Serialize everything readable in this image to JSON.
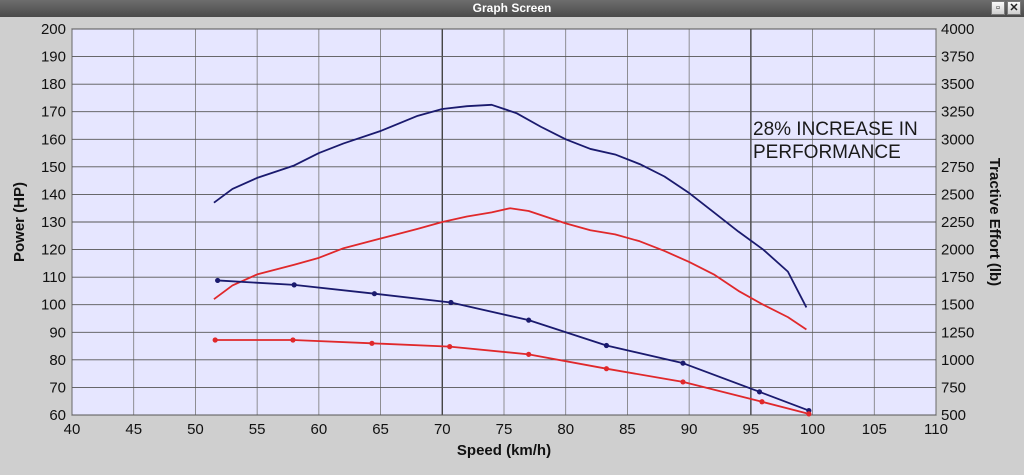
{
  "window": {
    "title": "Graph Screen",
    "restore_label": "▫",
    "close_label": "✕"
  },
  "chart_data": {
    "type": "line",
    "xlabel": "Speed (km/h)",
    "ylabel": "Power (HP)",
    "y2label": "Tractive Effort (lb)",
    "xlim": [
      40,
      110
    ],
    "ylim": [
      60,
      200
    ],
    "y2lim": [
      500,
      4000
    ],
    "x_ticks": [
      40,
      45,
      50,
      55,
      60,
      65,
      70,
      75,
      80,
      85,
      90,
      95,
      100,
      105,
      110
    ],
    "y_ticks": [
      60,
      70,
      80,
      90,
      100,
      110,
      120,
      130,
      140,
      150,
      160,
      170,
      180,
      190,
      200
    ],
    "y2_ticks": [
      500,
      750,
      1000,
      1250,
      1500,
      1750,
      2000,
      2250,
      2500,
      2750,
      3000,
      3250,
      3500,
      3750,
      4000
    ],
    "grid": true,
    "annotation": [
      "28% INCREASE IN",
      "PERFORMANCE"
    ],
    "colors": {
      "blue": "#1a1a6e",
      "red": "#e0282b",
      "plot_bg": "#e6e6ff"
    },
    "series": [
      {
        "axis": "left",
        "color": "#1a1a6e",
        "markers": false,
        "x": [
          51.5,
          53,
          55,
          58,
          60,
          62,
          65,
          68,
          70,
          72,
          74,
          76,
          78,
          80,
          82,
          84,
          86,
          88,
          90,
          92,
          94,
          96,
          98,
          99.5
        ],
        "y": [
          137,
          142,
          146,
          150.5,
          155,
          158.5,
          163,
          168.5,
          171,
          172,
          172.5,
          169.5,
          164.5,
          160,
          156.5,
          154.5,
          151,
          146.5,
          140.5,
          133.5,
          126.5,
          120,
          112,
          99
        ]
      },
      {
        "axis": "left",
        "color": "#e0282b",
        "markers": false,
        "x": [
          51.5,
          53,
          55,
          58,
          60,
          62,
          65,
          68,
          70,
          72,
          74,
          75.5,
          77,
          80,
          82,
          84,
          86,
          88,
          90,
          92,
          94,
          96,
          98,
          99.5
        ],
        "y": [
          102,
          107,
          111,
          114.5,
          117,
          120.5,
          124,
          127.5,
          130,
          132,
          133.5,
          135,
          134,
          129.5,
          127,
          125.5,
          123,
          119.5,
          115.5,
          111,
          105,
          100,
          95.5,
          91
        ]
      },
      {
        "axis": "right",
        "color": "#1a1a6e",
        "markers": true,
        "x": [
          51.8,
          58,
          64.5,
          70.7,
          77,
          83.3,
          89.5,
          95.7,
          99.7
        ],
        "y": [
          1720,
          1680,
          1600,
          1520,
          1360,
          1130,
          970,
          710,
          540
        ]
      },
      {
        "axis": "right",
        "color": "#e0282b",
        "markers": true,
        "x": [
          51.6,
          57.9,
          64.3,
          70.6,
          77,
          83.3,
          89.5,
          95.9,
          99.7
        ],
        "y": [
          1180,
          1180,
          1150,
          1120,
          1050,
          920,
          800,
          620,
          510
        ]
      }
    ]
  }
}
